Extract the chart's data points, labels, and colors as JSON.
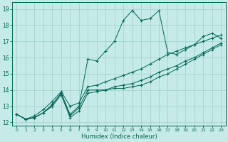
{
  "xlabel": "Humidex (Indice chaleur)",
  "bg_color": "#c5eae7",
  "grid_color": "#9ecfcc",
  "line_color": "#006655",
  "xlim": [
    -0.5,
    23.5
  ],
  "ylim": [
    11.8,
    19.4
  ],
  "xticks": [
    0,
    1,
    2,
    3,
    4,
    5,
    6,
    7,
    8,
    9,
    10,
    11,
    12,
    13,
    14,
    15,
    16,
    17,
    18,
    19,
    20,
    21,
    22,
    23
  ],
  "yticks": [
    12,
    13,
    14,
    15,
    16,
    17,
    18,
    19
  ],
  "line1_x": [
    0,
    1,
    2,
    3,
    4,
    5,
    6,
    7,
    8,
    9,
    10,
    11,
    12,
    13,
    14,
    15,
    16,
    17,
    18,
    19,
    20,
    21,
    22,
    23
  ],
  "line1_y": [
    12.5,
    12.2,
    12.3,
    12.6,
    13.1,
    13.8,
    12.5,
    13.0,
    15.9,
    15.8,
    16.4,
    17.0,
    18.3,
    18.9,
    18.3,
    18.4,
    18.9,
    16.3,
    16.2,
    16.5,
    16.8,
    17.3,
    17.5,
    17.2
  ],
  "line2_x": [
    0,
    1,
    2,
    3,
    4,
    5,
    6,
    7,
    8,
    9,
    10,
    11,
    12,
    13,
    14,
    15,
    16,
    17,
    18,
    19,
    20,
    21,
    22,
    23
  ],
  "line2_y": [
    12.5,
    12.2,
    12.3,
    12.6,
    13.1,
    13.8,
    12.4,
    12.9,
    14.0,
    14.0,
    14.0,
    14.1,
    14.1,
    14.2,
    14.3,
    14.5,
    14.8,
    15.0,
    15.3,
    15.6,
    15.9,
    16.2,
    16.5,
    16.8
  ],
  "line3_x": [
    0,
    1,
    2,
    3,
    4,
    5,
    6,
    7,
    8,
    9,
    10,
    11,
    12,
    13,
    14,
    15,
    16,
    17,
    18,
    19,
    20,
    21,
    22,
    23
  ],
  "line3_y": [
    12.5,
    12.2,
    12.4,
    12.8,
    13.3,
    13.9,
    13.0,
    13.2,
    14.2,
    14.3,
    14.5,
    14.7,
    14.9,
    15.1,
    15.3,
    15.6,
    15.9,
    16.2,
    16.4,
    16.6,
    16.8,
    17.0,
    17.2,
    17.4
  ],
  "line4_x": [
    0,
    1,
    2,
    3,
    4,
    5,
    6,
    7,
    8,
    9,
    10,
    11,
    12,
    13,
    14,
    15,
    16,
    17,
    18,
    19,
    20,
    21,
    22,
    23
  ],
  "line4_y": [
    12.5,
    12.2,
    12.3,
    12.6,
    13.0,
    13.7,
    12.3,
    12.7,
    13.8,
    13.9,
    14.0,
    14.2,
    14.3,
    14.4,
    14.6,
    14.8,
    15.1,
    15.3,
    15.5,
    15.8,
    16.0,
    16.3,
    16.6,
    16.9
  ]
}
